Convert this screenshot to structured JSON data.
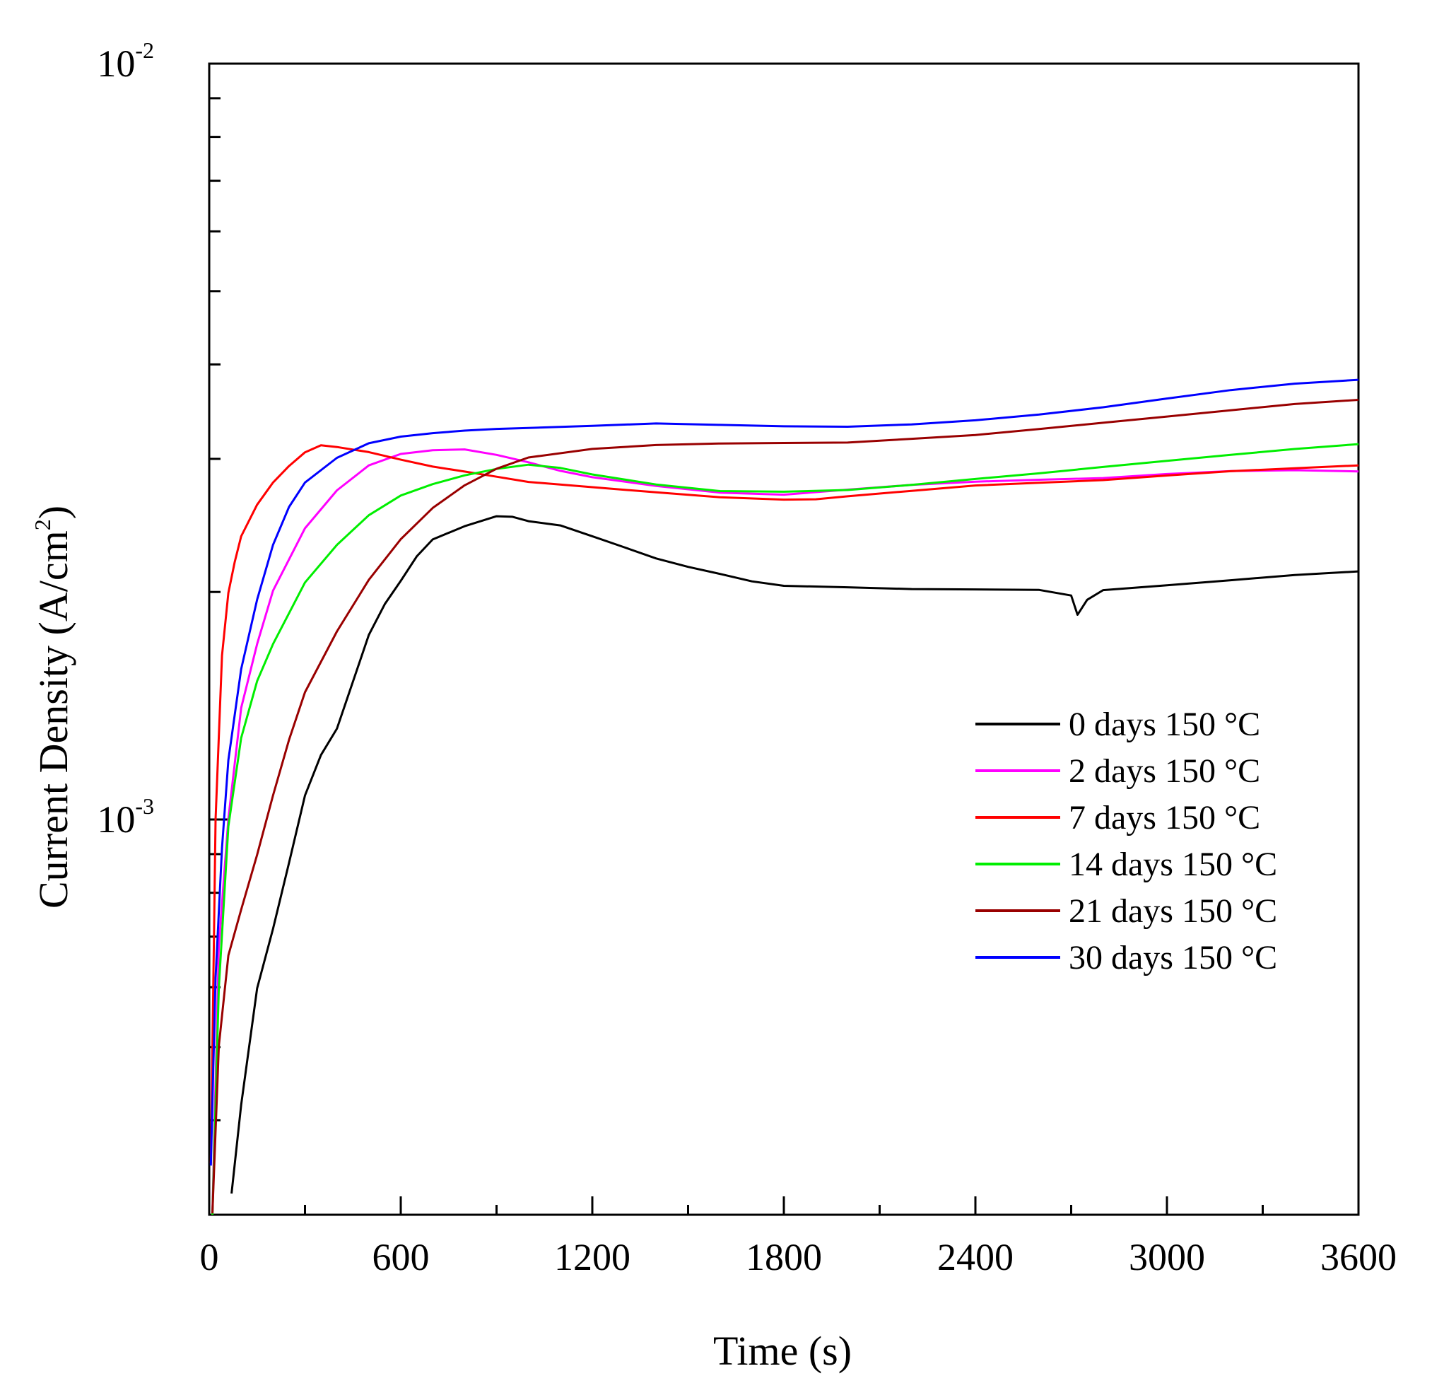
{
  "chart_data": {
    "type": "line",
    "title": "",
    "xlabel": "Time (s)",
    "ylabel": "Current Density (A/cm",
    "ylabel_sup": "2",
    "ylabel_close": ")",
    "xlim": [
      0,
      3600
    ],
    "ylim": [
      0.0003,
      0.01
    ],
    "yscale": "log",
    "x_ticks": [
      0,
      600,
      1200,
      1800,
      2400,
      3000,
      3600
    ],
    "x_tick_labels": [
      "0",
      "600",
      "1200",
      "1800",
      "2400",
      "3000",
      "3600"
    ],
    "y_tick_labels": [
      {
        "base": "10",
        "exp": "-2",
        "value": 0.01
      },
      {
        "base": "10",
        "exp": "-3",
        "value": 0.001
      }
    ],
    "grid": false,
    "legend_position": "lower-right",
    "series": [
      {
        "name": "0 days 150 °C",
        "color": "#000000",
        "x": [
          70,
          100,
          150,
          200,
          250,
          300,
          350,
          400,
          450,
          500,
          550,
          600,
          650,
          700,
          800,
          900,
          950,
          1000,
          1100,
          1200,
          1300,
          1400,
          1500,
          1600,
          1700,
          1800,
          2000,
          2200,
          2400,
          2600,
          2700,
          2720,
          2750,
          2800,
          3000,
          3200,
          3400,
          3600
        ],
        "y": [
          0.00032,
          0.00042,
          0.0006,
          0.00072,
          0.00088,
          0.00108,
          0.00122,
          0.00132,
          0.00152,
          0.00175,
          0.00192,
          0.00206,
          0.00222,
          0.00234,
          0.00244,
          0.00252,
          0.00252,
          0.00249,
          0.00246,
          0.00238,
          0.0023,
          0.00222,
          0.00216,
          0.00211,
          0.00206,
          0.00203,
          0.00202,
          0.00201,
          0.00201,
          0.00201,
          0.00198,
          0.00187,
          0.00196,
          0.00202,
          0.00205,
          0.00208,
          0.00211,
          0.00213
        ]
      },
      {
        "name": "2 days 150 °C",
        "color": "#ff00ff",
        "x": [
          10,
          30,
          60,
          100,
          150,
          200,
          300,
          400,
          500,
          600,
          700,
          800,
          900,
          1000,
          1100,
          1200,
          1400,
          1600,
          1800,
          2000,
          2200,
          2400,
          2600,
          2800,
          3000,
          3200,
          3400,
          3600
        ],
        "y": [
          0.0003,
          0.00068,
          0.001,
          0.0014,
          0.0017,
          0.002,
          0.00242,
          0.00272,
          0.00294,
          0.00305,
          0.00309,
          0.0031,
          0.00305,
          0.00298,
          0.0029,
          0.00284,
          0.00276,
          0.0027,
          0.00268,
          0.00272,
          0.00276,
          0.00279,
          0.00281,
          0.00283,
          0.00287,
          0.0029,
          0.00291,
          0.0029
        ]
      },
      {
        "name": "7 days 150 °C",
        "color": "#ff0000",
        "x": [
          5,
          20,
          40,
          60,
          80,
          100,
          150,
          200,
          250,
          300,
          350,
          400,
          500,
          600,
          700,
          800,
          900,
          1000,
          1200,
          1400,
          1600,
          1800,
          1900,
          2000,
          2200,
          2400,
          2600,
          2800,
          3000,
          3200,
          3400,
          3600
        ],
        "y": [
          0.00035,
          0.001,
          0.00165,
          0.002,
          0.0022,
          0.00238,
          0.00262,
          0.0028,
          0.00294,
          0.00306,
          0.00312,
          0.0031,
          0.00305,
          0.00298,
          0.00292,
          0.00288,
          0.00284,
          0.0028,
          0.00276,
          0.00272,
          0.00268,
          0.00266,
          0.00266,
          0.00268,
          0.00272,
          0.00276,
          0.00278,
          0.0028,
          0.00284,
          0.00288,
          0.00291,
          0.00294
        ]
      },
      {
        "name": "14 days 150 °C",
        "color": "#00ee00",
        "x": [
          10,
          30,
          60,
          100,
          150,
          200,
          300,
          400,
          500,
          600,
          700,
          800,
          900,
          1000,
          1100,
          1200,
          1400,
          1600,
          1800,
          2000,
          2200,
          2400,
          2600,
          2800,
          3000,
          3200,
          3400,
          3600
        ],
        "y": [
          0.0003,
          0.0006,
          0.00098,
          0.00128,
          0.00152,
          0.0017,
          0.00205,
          0.0023,
          0.00252,
          0.00268,
          0.00278,
          0.00286,
          0.00292,
          0.00296,
          0.00293,
          0.00287,
          0.00278,
          0.00272,
          0.00271,
          0.00272,
          0.00276,
          0.00281,
          0.00286,
          0.00292,
          0.00298,
          0.00304,
          0.0031,
          0.00315
        ]
      },
      {
        "name": "21 days 150 °C",
        "color": "#990000",
        "x": [
          10,
          30,
          60,
          100,
          150,
          200,
          250,
          300,
          400,
          500,
          600,
          700,
          800,
          900,
          1000,
          1200,
          1400,
          1600,
          1800,
          2000,
          2200,
          2400,
          2600,
          2800,
          3000,
          3200,
          3400,
          3600
        ],
        "y": [
          0.0003,
          0.0005,
          0.00066,
          0.00076,
          0.0009,
          0.00108,
          0.00128,
          0.00148,
          0.00178,
          0.00208,
          0.00235,
          0.00258,
          0.00276,
          0.0029,
          0.003,
          0.00308,
          0.00312,
          0.00314,
          0.00315,
          0.00316,
          0.0032,
          0.00324,
          0.0033,
          0.00336,
          0.00342,
          0.00348,
          0.00354,
          0.00358
        ]
      },
      {
        "name": "30 days 150 °C",
        "color": "#0000ff",
        "x": [
          5,
          20,
          40,
          60,
          100,
          150,
          200,
          250,
          300,
          400,
          500,
          600,
          700,
          800,
          900,
          1000,
          1200,
          1400,
          1600,
          1800,
          2000,
          2200,
          2400,
          2600,
          2800,
          3000,
          3200,
          3400,
          3600
        ],
        "y": [
          0.00035,
          0.00062,
          0.00092,
          0.0012,
          0.00158,
          0.00195,
          0.0023,
          0.00258,
          0.00278,
          0.003,
          0.00314,
          0.00321,
          0.00325,
          0.00328,
          0.0033,
          0.00331,
          0.00333,
          0.00335,
          0.00333,
          0.00331,
          0.0033,
          0.00332,
          0.00336,
          0.00342,
          0.0035,
          0.0036,
          0.0037,
          0.00378,
          0.00383
        ]
      }
    ]
  }
}
